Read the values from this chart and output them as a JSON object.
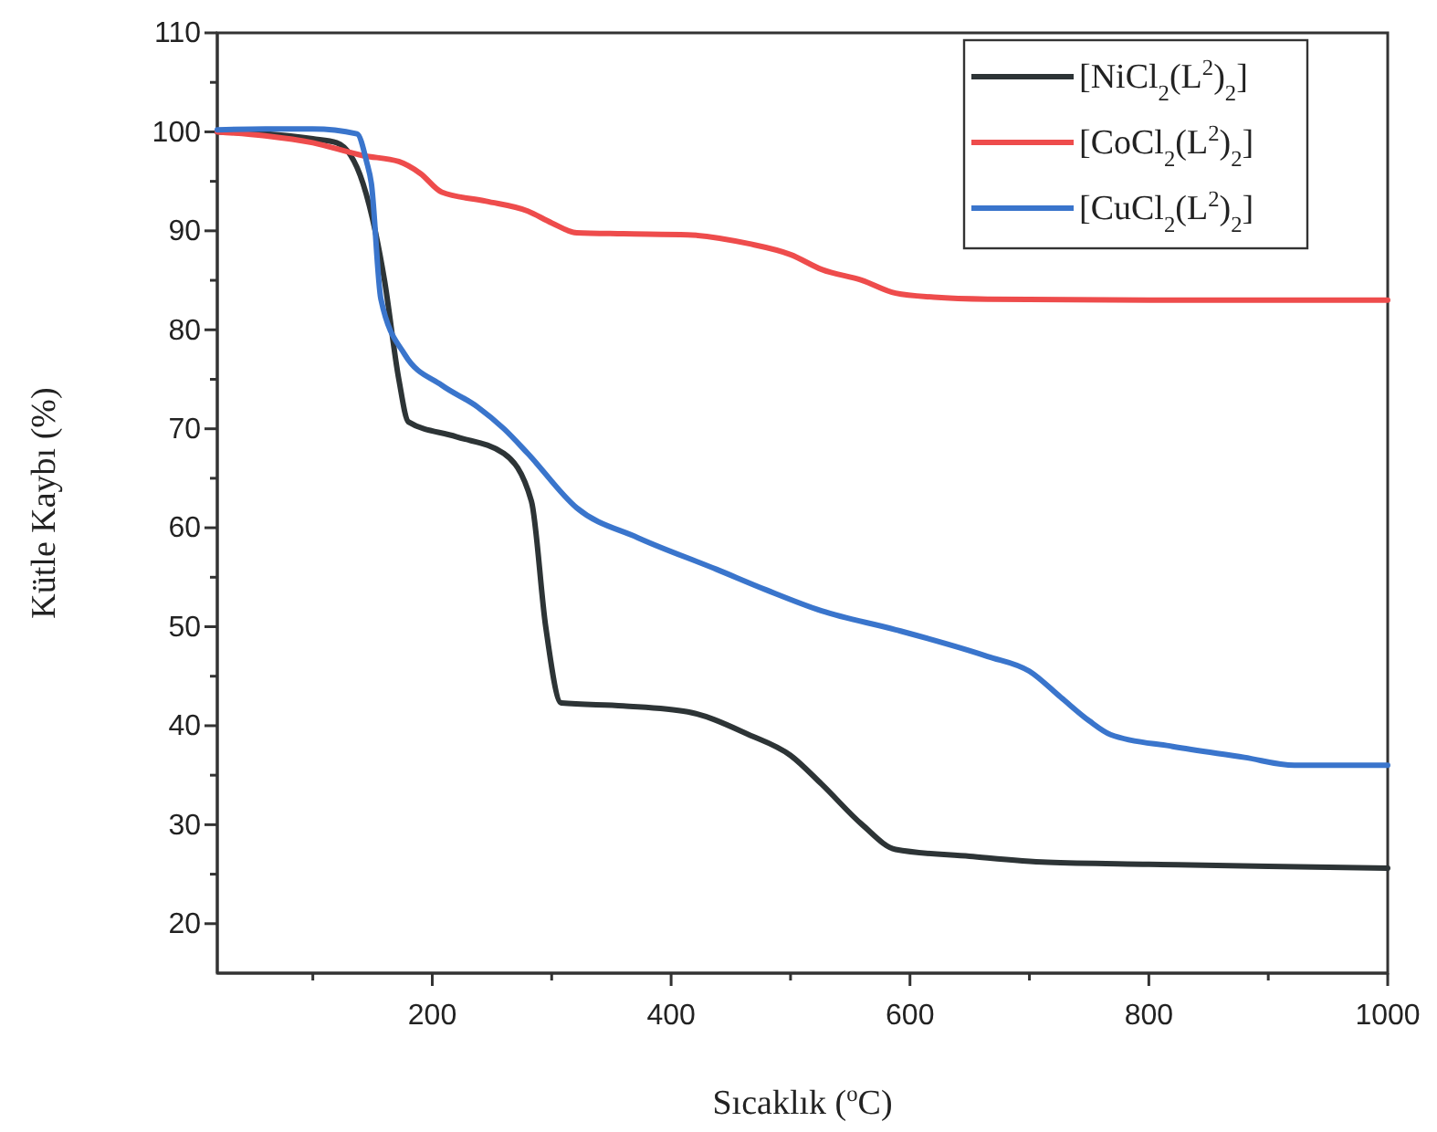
{
  "chart_data": {
    "type": "line",
    "xlabel": "Sıcaklık ($^{o}$C)",
    "ylabel": "Kütle Kaybı (%)",
    "xlim": [
      20,
      1000
    ],
    "ylim": [
      15,
      110
    ],
    "xticks": [
      {
        "value": 100,
        "label": null
      },
      200,
      {
        "value": 300,
        "label": null
      },
      400,
      {
        "value": 500,
        "label": null
      },
      600,
      {
        "value": 700,
        "label": null
      },
      800,
      {
        "value": 900,
        "label": null
      },
      1000
    ],
    "yticks": [
      20,
      {
        "value": 25,
        "label": null
      },
      30,
      {
        "value": 35,
        "label": null
      },
      40,
      {
        "value": 45,
        "label": null
      },
      50,
      {
        "value": 55,
        "label": null
      },
      60,
      {
        "value": 65,
        "label": null
      },
      70,
      {
        "value": 75,
        "label": null
      },
      80,
      {
        "value": 85,
        "label": null
      },
      90,
      {
        "value": 95,
        "label": null
      },
      100,
      {
        "value": 105,
        "label": null
      },
      110
    ],
    "grid": false,
    "legend": "top right",
    "line_style": "solid",
    "marker": "none",
    "series": [
      {
        "name": "[NiCl$_{2}$(L$^{2}$)$_{2}$]",
        "color": "#2d3436",
        "x": [
          20,
          60,
          100,
          120,
          142,
          160,
          172,
          180,
          220,
          260,
          283,
          295,
          308,
          360,
          414,
          465,
          500,
          526,
          560,
          588,
          650,
          715,
          800,
          900,
          1000
        ],
        "values": [
          100,
          99.8,
          99.3,
          98.9,
          94.8,
          85,
          75,
          70.7,
          69.2,
          67.5,
          62.7,
          50,
          42.3,
          42,
          41.4,
          39.1,
          37,
          34.1,
          30,
          27.5,
          26.8,
          26.2,
          26,
          25.8,
          25.6
        ]
      },
      {
        "name": "[CoCl$_{2}$(L$^{2}$)$_{2}$]",
        "color": "#ee4c4c",
        "x": [
          20,
          60,
          100,
          142,
          172,
          190,
          208,
          245,
          280,
          300,
          321,
          360,
          414,
          465,
          500,
          526,
          560,
          588,
          620,
          665,
          800,
          900,
          1000
        ],
        "values": [
          100,
          99.6,
          98.9,
          97.6,
          97,
          95.8,
          93.9,
          93,
          92,
          90.8,
          89.8,
          89.7,
          89.6,
          88.7,
          87.6,
          86.1,
          85,
          83.7,
          83.3,
          83.1,
          83,
          83,
          83
        ]
      },
      {
        "name": "[CuCl$_{2}$(L$^{2}$)$_{2}$]",
        "color": "#3a75cc",
        "x": [
          20,
          60,
          100,
          137,
          145,
          149,
          157,
          177,
          208,
          238,
          260,
          280,
          321,
          372,
          438,
          480,
          526,
          588,
          665,
          700,
          726,
          750,
          768,
          820,
          880,
          922,
          1000
        ],
        "values": [
          100.2,
          100.3,
          100.3,
          99.8,
          97,
          94.8,
          83.1,
          77.5,
          74.4,
          72.2,
          70,
          67.5,
          62,
          59,
          55.8,
          53.7,
          51.6,
          49.7,
          47,
          45.5,
          42.9,
          40.5,
          39.1,
          37.9,
          36.8,
          36,
          36
        ]
      }
    ]
  }
}
